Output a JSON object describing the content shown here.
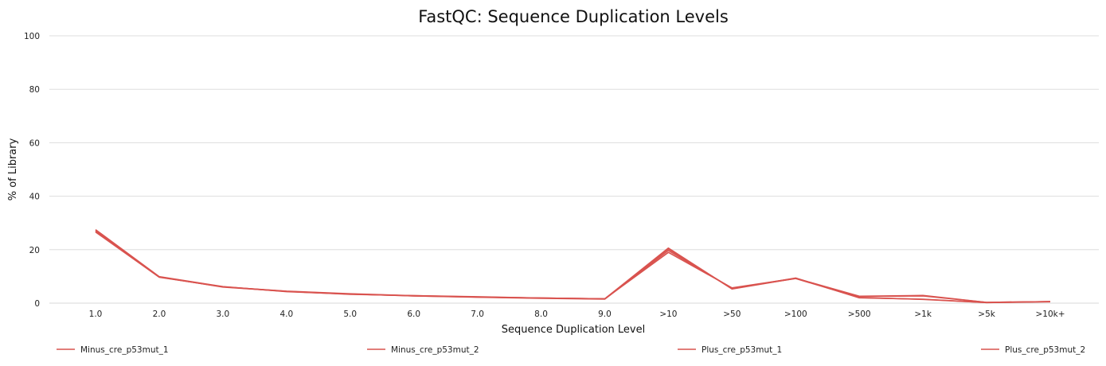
{
  "chart_data": {
    "type": "line",
    "title": "FastQC: Sequence Duplication Levels",
    "xlabel": "Sequence Duplication Level",
    "ylabel": "% of Library",
    "ylim": [
      0,
      100
    ],
    "yticks": [
      0,
      20,
      40,
      60,
      80,
      100
    ],
    "categories": [
      "1.0",
      "2.0",
      "3.0",
      "4.0",
      "5.0",
      "6.0",
      "7.0",
      "8.0",
      "9.0",
      ">10",
      ">50",
      ">100",
      ">500",
      ">1k",
      ">5k",
      ">10k+"
    ],
    "grid": true,
    "legend_position": "bottom",
    "series": [
      {
        "name": "Minus_cre_p53mut_1",
        "color": "#d9534f",
        "values": [
          27.2,
          9.8,
          6.0,
          4.4,
          3.4,
          2.7,
          2.3,
          1.9,
          1.6,
          19.0,
          5.7,
          9.3,
          2.6,
          2.9,
          0.3,
          0.6
        ]
      },
      {
        "name": "Minus_cre_p53mut_2",
        "color": "#d9534f",
        "values": [
          26.6,
          9.7,
          6.1,
          4.5,
          3.5,
          2.8,
          2.3,
          1.9,
          1.6,
          20.3,
          5.4,
          9.4,
          2.0,
          1.5,
          0.2,
          0.6
        ]
      },
      {
        "name": "Plus_cre_p53mut_1",
        "color": "#d9534f",
        "values": [
          27.5,
          9.9,
          6.2,
          4.3,
          3.4,
          2.7,
          2.2,
          1.8,
          1.5,
          19.7,
          5.6,
          9.2,
          2.1,
          1.4,
          0.2,
          0.5
        ]
      },
      {
        "name": "Plus_cre_p53mut_2",
        "color": "#d9534f",
        "values": [
          26.9,
          9.8,
          6.1,
          4.4,
          3.3,
          2.8,
          2.4,
          1.9,
          1.6,
          20.6,
          5.3,
          9.3,
          2.5,
          2.7,
          0.3,
          0.6
        ]
      }
    ]
  }
}
